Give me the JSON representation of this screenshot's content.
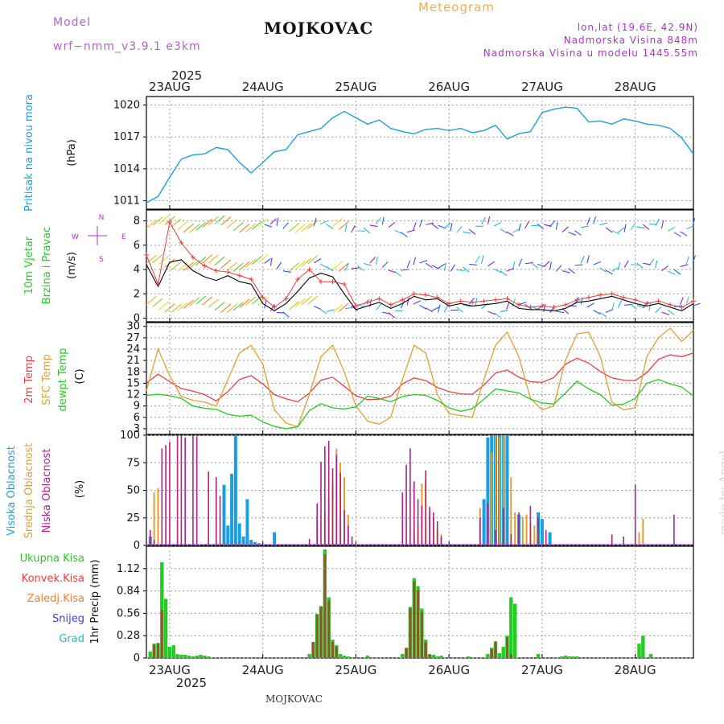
{
  "header": {
    "model_label": "Model",
    "model_name": "wrf−nmm_v3.9.1  e3km",
    "station": "MOJKOVAC",
    "product": "Meteogram",
    "lonlat": "lon,lat (19.6E, 42.9N)",
    "elevation": "Nadmorska Visina 848m",
    "model_elevation": "Nadmorska Visina u modelu 1445.55m",
    "watermark": "made by Angel",
    "footer": "MOJKOVAC"
  },
  "colors": {
    "pressure": "#1aa0e0",
    "wind_speed": "#000000",
    "gust": "#e84040",
    "temp2m": "#e84040",
    "sfc": "#e0a030",
    "dewpt": "#22cc22",
    "high_cloud": "#1aa0e0",
    "mid_cloud": "#e0a030",
    "low_cloud": "#b0208a",
    "total_precip": "#22cc22",
    "conv_precip": "#e84040",
    "frozen_precip": "#f08030",
    "snow": "#4040e0",
    "hail": "#20c0c0"
  },
  "chart_data": [
    {
      "type": "line",
      "name": "pressure",
      "ylabel_parts": [
        "Pritisak na nivou mora",
        "(hPa)"
      ],
      "yticks": [
        1011,
        1014,
        1017,
        1020
      ],
      "ylim": [
        1010.2,
        1020.8
      ],
      "xlim": [
        0,
        141
      ],
      "x_top_labels": [
        "23AUG",
        "24AUG",
        "25AUG",
        "26AUG",
        "27AUG",
        "28AUG"
      ],
      "x_top_year": "2025",
      "x_tick_hours": [
        6,
        30,
        54,
        78,
        102,
        126
      ],
      "x": [
        0,
        3,
        6,
        9,
        12,
        15,
        18,
        21,
        24,
        27,
        30,
        33,
        36,
        39,
        42,
        45,
        48,
        51,
        54,
        57,
        60,
        63,
        66,
        69,
        72,
        75,
        78,
        81,
        84,
        87,
        90,
        93,
        96,
        99,
        102,
        105,
        108,
        111,
        114,
        117,
        120,
        123,
        126,
        129,
        132,
        135,
        138,
        141
      ],
      "values": [
        1010.8,
        1011.4,
        1013.2,
        1014.9,
        1015.3,
        1015.4,
        1016.0,
        1015.8,
        1014.6,
        1013.6,
        1014.6,
        1015.6,
        1015.8,
        1017.2,
        1017.5,
        1017.8,
        1018.8,
        1019.4,
        1018.8,
        1018.2,
        1018.6,
        1017.8,
        1017.5,
        1017.3,
        1017.7,
        1017.8,
        1017.6,
        1017.8,
        1017.4,
        1017.6,
        1018.1,
        1016.8,
        1017.3,
        1017.5,
        1019.3,
        1019.6,
        1019.8,
        1019.7,
        1018.4,
        1018.5,
        1018.2,
        1018.7,
        1018.5,
        1018.2,
        1018.1,
        1017.8,
        1016.9,
        1015.4
      ]
    },
    {
      "type": "line",
      "name": "wind",
      "ylabel_parts": [
        "10m Vjetar",
        "Brzina i Pravac",
        "(m/s)"
      ],
      "compass": [
        "W",
        "E",
        "N",
        "S"
      ],
      "yticks": [
        0,
        2,
        4,
        6,
        8
      ],
      "ylim": [
        -0.3,
        8.9
      ],
      "xlim": [
        0,
        141
      ],
      "x": [
        0,
        3,
        6,
        9,
        12,
        15,
        18,
        21,
        24,
        27,
        30,
        33,
        36,
        39,
        42,
        45,
        48,
        51,
        54,
        57,
        60,
        63,
        66,
        69,
        72,
        75,
        78,
        81,
        84,
        87,
        90,
        93,
        96,
        99,
        102,
        105,
        108,
        111,
        114,
        117,
        120,
        123,
        126,
        129,
        132,
        135,
        138,
        141
      ],
      "series": [
        {
          "name": "10m wind speed",
          "values": [
            4.4,
            2.6,
            4.6,
            4.8,
            3.9,
            3.4,
            3.1,
            3.5,
            3.0,
            2.8,
            1.2,
            0.6,
            1.2,
            2.2,
            3.3,
            3.7,
            3.4,
            2.0,
            0.7,
            1.0,
            1.3,
            0.8,
            1.2,
            1.8,
            1.5,
            1.6,
            1.0,
            1.2,
            1.0,
            1.1,
            1.2,
            1.4,
            0.8,
            0.7,
            0.7,
            0.6,
            0.8,
            1.3,
            1.4,
            1.6,
            1.8,
            1.5,
            1.2,
            1.0,
            1.2,
            0.9,
            0.6,
            1.2
          ]
        },
        {
          "name": "gust",
          "values": [
            5.2,
            2.8,
            7.9,
            6.2,
            5.0,
            4.3,
            3.9,
            3.8,
            3.5,
            3.2,
            1.7,
            0.9,
            1.6,
            3.2,
            4.0,
            3.0,
            3.0,
            2.8,
            1.0,
            1.3,
            1.6,
            1.1,
            1.5,
            2.0,
            1.9,
            1.7,
            1.2,
            1.4,
            1.3,
            1.4,
            1.5,
            1.6,
            1.1,
            0.9,
            1.0,
            0.9,
            1.1,
            1.5,
            1.7,
            1.9,
            2.0,
            1.7,
            1.5,
            1.2,
            1.4,
            1.1,
            0.9,
            1.4
          ]
        }
      ],
      "barb_rows": [
        7.4,
        4.2,
        0.8
      ]
    },
    {
      "type": "line",
      "name": "temperature",
      "ylabel_parts": [
        "2m Temp",
        "SFC Temp",
        "dewpt Temp",
        "(C)"
      ],
      "yticks": [
        3,
        6,
        9,
        12,
        15,
        18,
        21,
        24,
        27,
        30
      ],
      "ylim": [
        1.5,
        31
      ],
      "xlim": [
        0,
        141
      ],
      "x": [
        0,
        3,
        6,
        9,
        12,
        15,
        18,
        21,
        24,
        27,
        30,
        33,
        36,
        39,
        42,
        45,
        48,
        51,
        54,
        57,
        60,
        63,
        66,
        69,
        72,
        75,
        78,
        81,
        84,
        87,
        90,
        93,
        96,
        99,
        102,
        105,
        108,
        111,
        114,
        117,
        120,
        123,
        126,
        129,
        132,
        135,
        138,
        141
      ],
      "series": [
        {
          "name": "2m Temp",
          "values": [
            15.0,
            17.4,
            15.4,
            13.6,
            12.9,
            12.0,
            10.3,
            12.8,
            16.0,
            17.0,
            14.8,
            12.0,
            10.9,
            10.1,
            12.4,
            15.8,
            16.6,
            14.2,
            11.7,
            10.7,
            10.8,
            11.6,
            14.8,
            16.4,
            15.7,
            13.9,
            12.8,
            12.2,
            12.1,
            14.5,
            17.7,
            18.5,
            16.6,
            15.4,
            15.2,
            16.5,
            20.0,
            21.6,
            20.3,
            18.1,
            16.4,
            15.8,
            15.7,
            17.8,
            21.3,
            22.5,
            22.0,
            23.0
          ]
        },
        {
          "name": "SFC Temp",
          "values": [
            13.0,
            24.0,
            17.0,
            11.5,
            10.5,
            10.0,
            9.0,
            16.0,
            23.0,
            25.0,
            20.0,
            8.0,
            4.5,
            3.5,
            12.0,
            22.0,
            25.0,
            18.0,
            9.0,
            5.0,
            4.2,
            6.0,
            16.0,
            25.0,
            23.0,
            12.0,
            7.0,
            6.5,
            6.0,
            16.0,
            25.0,
            28.5,
            22.0,
            11.0,
            8.0,
            9.0,
            21.0,
            28.0,
            28.5,
            22.0,
            10.0,
            8.0,
            8.5,
            22.0,
            27.0,
            29.5,
            26.0,
            29.0
          ]
        },
        {
          "name": "dewpt Temp",
          "values": [
            11.8,
            12.1,
            11.7,
            11.0,
            9.0,
            8.4,
            8.1,
            6.8,
            6.3,
            6.6,
            4.8,
            3.6,
            3.0,
            3.5,
            7.8,
            9.6,
            8.5,
            8.2,
            8.8,
            11.6,
            11.0,
            10.1,
            11.5,
            12.0,
            11.8,
            10.5,
            8.5,
            7.6,
            8.3,
            10.8,
            13.5,
            13.0,
            12.4,
            10.8,
            9.8,
            9.5,
            12.4,
            15.5,
            13.5,
            12.0,
            9.2,
            9.5,
            11.0,
            15.0,
            16.0,
            14.8,
            14.0,
            11.6
          ]
        }
      ]
    },
    {
      "type": "bar",
      "name": "cloud",
      "ylabel_parts": [
        "Visoka Oblacnost",
        "Srednja Oblacnost",
        "Niska Oblacnost",
        "(%)"
      ],
      "yticks": [
        0,
        25,
        50,
        75,
        100
      ],
      "ylim": [
        0,
        100
      ],
      "xlim": [
        0,
        141
      ],
      "series": [
        {
          "name": "Visoka Oblacnost",
          "x": [
            1,
            20,
            21,
            22,
            23,
            24,
            25,
            26,
            27,
            28,
            29,
            33,
            87,
            88,
            89,
            90,
            91,
            92,
            93,
            96,
            101,
            102,
            104
          ],
          "values": [
            8,
            55,
            18,
            65,
            100,
            20,
            8,
            42,
            5,
            3,
            2,
            12,
            42,
            98,
            100,
            100,
            100,
            100,
            100,
            28,
            30,
            24,
            12
          ]
        },
        {
          "name": "Srednja Oblacnost",
          "x": [
            2,
            3,
            44,
            46,
            47,
            48,
            49,
            50,
            51,
            52,
            69,
            70,
            71,
            72,
            73,
            74,
            75,
            76,
            86,
            89,
            90,
            91,
            92,
            94,
            95,
            97,
            98,
            99,
            100,
            101,
            127,
            128
          ],
          "values": [
            48,
            52,
            24,
            30,
            42,
            58,
            88,
            75,
            62,
            28,
            15,
            18,
            56,
            60,
            30,
            25,
            14,
            10,
            34,
            85,
            100,
            98,
            100,
            62,
            30,
            26,
            28,
            20,
            18,
            10,
            12,
            24
          ]
        },
        {
          "name": "Niska Oblacnost",
          "x": [
            1,
            2,
            4,
            5,
            6,
            8,
            9,
            10,
            12,
            13,
            16,
            18,
            19,
            42,
            44,
            45,
            46,
            47,
            48,
            49,
            50,
            51,
            52,
            53,
            66,
            67,
            68,
            69,
            70,
            71,
            72,
            73,
            74,
            75,
            76,
            86,
            88,
            90,
            92,
            94,
            96,
            99,
            101,
            103,
            120,
            123,
            126,
            136
          ],
          "values": [
            14,
            5,
            88,
            91,
            94,
            100,
            100,
            98,
            100,
            99,
            67,
            62,
            45,
            6,
            38,
            76,
            90,
            95,
            70,
            82,
            66,
            32,
            18,
            8,
            48,
            73,
            88,
            58,
            42,
            36,
            68,
            35,
            30,
            22,
            8,
            25,
            38,
            14,
            34,
            10,
            30,
            36,
            26,
            14,
            10,
            8,
            55,
            28
          ]
        }
      ]
    },
    {
      "type": "bar",
      "name": "precip",
      "ylabel_parts": [
        "1hr Precip (mm)"
      ],
      "legend": [
        "Ukupna Kisa",
        "Konvek.Kisa",
        "Zaledj.Kisa",
        "Snijeg",
        "Grad"
      ],
      "yticks": [
        0,
        0.28,
        0.56,
        0.84,
        1.12
      ],
      "ylim": [
        0,
        1.4
      ],
      "xlim": [
        0,
        141
      ],
      "x_bottom_labels": [
        "23AUG",
        "24AUG",
        "25AUG",
        "26AUG",
        "27AUG",
        "28AUG"
      ],
      "x_bottom_year": "2025",
      "series": [
        {
          "name": "Ukupna Kisa",
          "x": [
            1,
            2,
            3,
            4,
            5,
            6,
            7,
            8,
            9,
            10,
            11,
            12,
            13,
            14,
            15,
            16,
            42,
            43,
            44,
            45,
            46,
            47,
            48,
            49,
            50,
            51,
            52,
            57,
            66,
            67,
            68,
            69,
            70,
            71,
            72,
            73,
            74,
            75,
            76,
            83,
            88,
            89,
            90,
            91,
            92,
            93,
            94,
            95,
            101,
            107,
            108,
            109,
            110,
            111,
            127,
            128,
            130
          ],
          "values": [
            0.08,
            0.18,
            0.19,
            1.2,
            0.74,
            0.14,
            0.16,
            0.05,
            0.04,
            0.04,
            0.03,
            0.02,
            0.03,
            0.04,
            0.03,
            0.02,
            0.05,
            0.2,
            0.55,
            0.65,
            1.36,
            0.76,
            0.23,
            0.16,
            0.05,
            0.03,
            0.02,
            0.03,
            0.05,
            0.13,
            0.64,
            1.0,
            0.9,
            0.62,
            0.23,
            0.05,
            0.04,
            0.02,
            0.03,
            0.02,
            0.05,
            0.13,
            0.21,
            0.06,
            0.14,
            0.28,
            0.76,
            0.68,
            0.05,
            0.02,
            0.03,
            0.02,
            0.02,
            0.02,
            0.18,
            0.28,
            0.05
          ]
        },
        {
          "name": "Konvek.Kisa",
          "x": [
            2,
            3,
            4,
            43,
            44,
            45,
            46,
            47,
            48,
            49,
            67,
            68,
            69,
            70,
            71,
            72,
            73,
            89,
            90,
            93,
            94
          ],
          "values": [
            0.17,
            0.18,
            0.6,
            0.2,
            0.55,
            0.64,
            1.3,
            0.72,
            0.2,
            0.14,
            0.12,
            0.62,
            0.96,
            0.85,
            0.58,
            0.2,
            0.04,
            0.11,
            0.2,
            0.26,
            0.05
          ]
        }
      ]
    }
  ]
}
